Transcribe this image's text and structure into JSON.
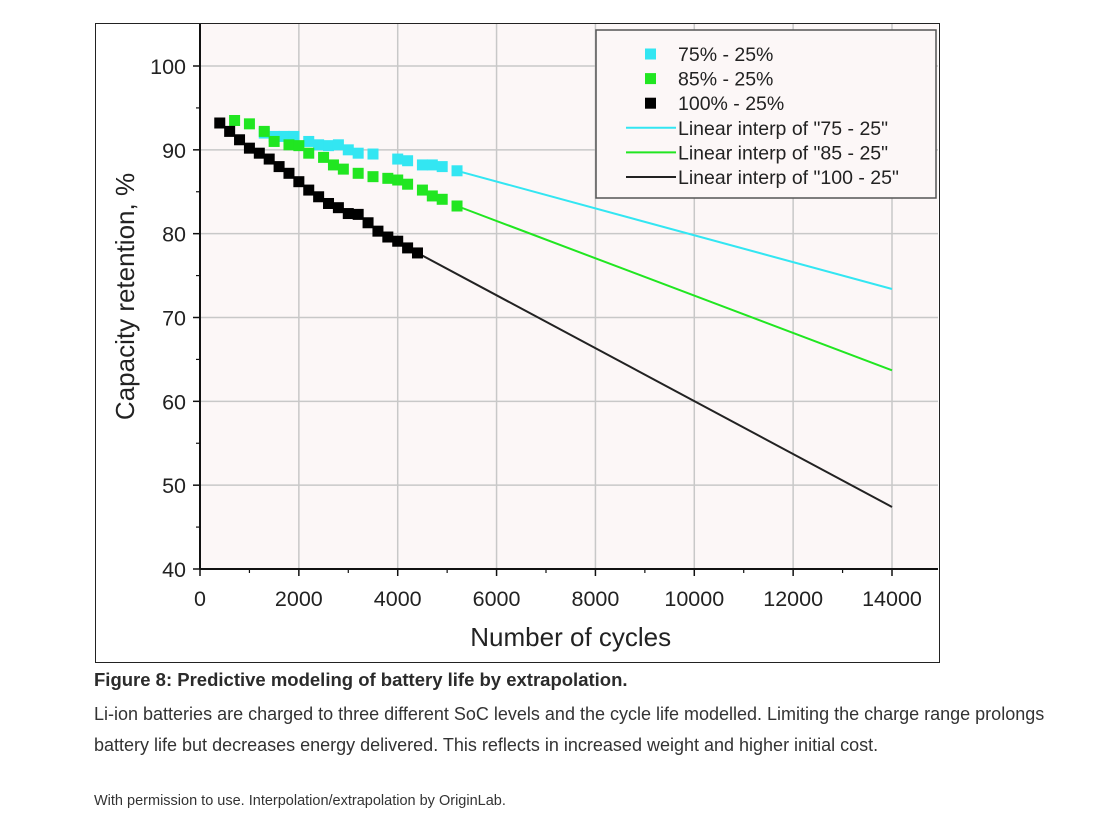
{
  "chart_data": {
    "type": "scatter",
    "xlabel": "Number of cycles",
    "ylabel": "Capacity retention, %",
    "xlim": [
      0,
      14000
    ],
    "ylim": [
      40,
      100
    ],
    "xticks": [
      "0",
      "2000",
      "4000",
      "6000",
      "8000",
      "10000",
      "12000",
      "14000"
    ],
    "yticks": [
      "40",
      "50",
      "60",
      "70",
      "80",
      "90",
      "100"
    ],
    "grid": true,
    "legend_position": "top-right",
    "series": [
      {
        "name": "75% - 25%",
        "marker": "square",
        "color": "#33e6f2",
        "x": [
          1300,
          1500,
          1700,
          1900,
          2200,
          2400,
          2600,
          2800,
          3000,
          3200,
          3500,
          4000,
          4200,
          4500,
          4700,
          4900,
          5200
        ],
        "y": [
          92.0,
          91.6,
          91.6,
          91.6,
          91.0,
          90.6,
          90.5,
          90.6,
          90.0,
          89.6,
          89.5,
          88.9,
          88.7,
          88.2,
          88.2,
          88.0,
          87.5
        ]
      },
      {
        "name": "85% - 25%",
        "marker": "square",
        "color": "#21e621",
        "x": [
          700,
          1000,
          1300,
          1500,
          1800,
          2000,
          2200,
          2500,
          2700,
          2900,
          3200,
          3500,
          3800,
          4000,
          4200,
          4500,
          4700,
          4900,
          5200
        ],
        "y": [
          93.5,
          93.1,
          92.2,
          91.0,
          90.6,
          90.5,
          89.6,
          89.1,
          88.2,
          87.7,
          87.2,
          86.8,
          86.6,
          86.4,
          85.9,
          85.2,
          84.5,
          84.1,
          83.3
        ]
      },
      {
        "name": "100% - 25%",
        "marker": "square",
        "color": "#000000",
        "x": [
          400,
          600,
          800,
          1000,
          1200,
          1400,
          1600,
          1800,
          2000,
          2200,
          2400,
          2600,
          2800,
          3000,
          3200,
          3400,
          3600,
          3800,
          4000,
          4200,
          4400
        ],
        "y": [
          93.2,
          92.2,
          91.2,
          90.2,
          89.6,
          88.9,
          88.0,
          87.2,
          86.2,
          85.2,
          84.4,
          83.6,
          83.1,
          82.4,
          82.3,
          81.3,
          80.3,
          79.6,
          79.1,
          78.3,
          77.7
        ]
      },
      {
        "name": "Linear interp of \"75 - 25\"",
        "line": true,
        "color": "#33e6f2",
        "x": [
          5200,
          14000
        ],
        "y": [
          87.5,
          73.4
        ]
      },
      {
        "name": "Linear interp of \"85 - 25\"",
        "line": true,
        "color": "#21e621",
        "x": [
          5200,
          14000
        ],
        "y": [
          83.3,
          63.7
        ]
      },
      {
        "name": "Linear interp of \"100 - 25\"",
        "line": true,
        "color": "#222222",
        "x": [
          4400,
          14000
        ],
        "y": [
          77.7,
          47.4
        ]
      }
    ]
  },
  "caption": {
    "title": "Figure 8: Predictive modeling of battery life by extrapolation.",
    "body": "Li-ion batteries are charged to three different SoC levels and the cycle life modelled. Limiting the charge range prolongs battery life but decreases energy delivered. This reflects in increased weight and higher initial cost.",
    "credit": "With permission to use. Interpolation/extrapolation by OriginLab."
  },
  "colors": {
    "plot_background": "#fcf7f7",
    "grid": "#c8c8c8",
    "axis": "#111111"
  }
}
